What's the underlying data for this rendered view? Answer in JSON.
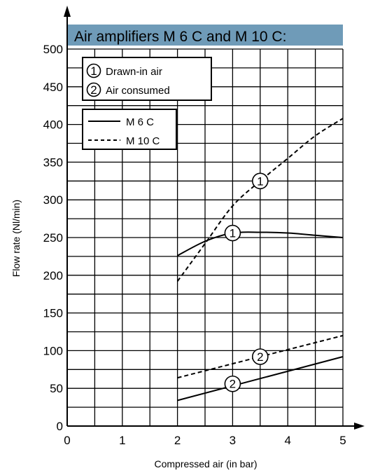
{
  "chart_data": {
    "type": "line",
    "title": "Air amplifiers M 6 C and M 10 C:",
    "xlabel": "Compressed air (in bar)",
    "ylabel": "Flow rate (Nl/min)",
    "xlim": [
      0,
      5
    ],
    "ylim": [
      0,
      500
    ],
    "xticks": [
      "0",
      "1",
      "2",
      "3",
      "4",
      "5"
    ],
    "yticks": [
      "0",
      "50",
      "100",
      "150",
      "200",
      "250",
      "300",
      "350",
      "400",
      "450",
      "500"
    ],
    "grid": true,
    "curve_legend": [
      {
        "marker": "1",
        "label": "Drawn-in air"
      },
      {
        "marker": "2",
        "label": "Air consumed"
      }
    ],
    "series": [
      {
        "name": "M 6 C",
        "style": "solid",
        "curve": "1",
        "x": [
          2,
          2.5,
          3,
          3.5,
          4,
          4.5,
          5
        ],
        "y": [
          226,
          245,
          256,
          257,
          256,
          253,
          250
        ]
      },
      {
        "name": "M 10 C",
        "style": "dashed",
        "curve": "1",
        "x": [
          2,
          2.5,
          3,
          3.5,
          4,
          4.5,
          5
        ],
        "y": [
          192,
          242,
          292,
          325,
          355,
          385,
          408
        ]
      },
      {
        "name": "M 6 C",
        "style": "solid",
        "curve": "2",
        "x": [
          2,
          5
        ],
        "y": [
          34,
          92
        ]
      },
      {
        "name": "M 10 C",
        "style": "dashed",
        "curve": "2",
        "x": [
          2,
          5
        ],
        "y": [
          64,
          120
        ]
      }
    ],
    "curve_markers": [
      {
        "label": "1",
        "x": 3.5,
        "y": 325
      },
      {
        "label": "1",
        "x": 3.0,
        "y": 256
      },
      {
        "label": "2",
        "x": 3.5,
        "y": 92
      },
      {
        "label": "2",
        "x": 3.0,
        "y": 56
      }
    ],
    "colors": {
      "title_band": "#6f9bb8",
      "line": "#000000",
      "grid": "#000000"
    }
  }
}
